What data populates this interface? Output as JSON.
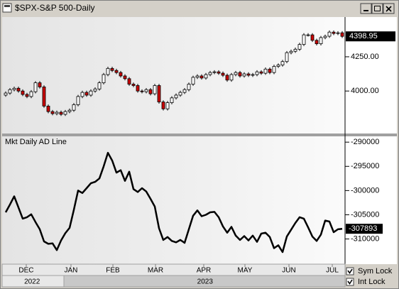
{
  "window_title": "$SPX-S&P 500-Daily",
  "controls": [
    "Sym Lock",
    "Int Lock"
  ],
  "x_axis": {
    "xlim": [
      -0.5,
      79.5
    ],
    "ticks": [
      {
        "value": 4.83,
        "label": "DEC"
      },
      {
        "value": 15.33,
        "label": "JAN"
      },
      {
        "value": 25.17,
        "label": "FEB"
      },
      {
        "value": 35.17,
        "label": "MAR"
      },
      {
        "value": 46.5,
        "label": "APR"
      },
      {
        "value": 56.17,
        "label": "MAY"
      },
      {
        "value": 66.5,
        "label": "JUN"
      },
      {
        "value": 76.67,
        "label": "JUL"
      }
    ],
    "years": [
      {
        "value": 6.2,
        "label": "2022"
      },
      {
        "value": 46.8,
        "label": "2023"
      }
    ]
  },
  "chart_data": [
    {
      "type": "candlestick",
      "up_color": "#ffffff",
      "down_color": "#cc0000",
      "edge_color": "#000000",
      "ylim": [
        3690,
        4540
      ],
      "yticks": [
        {
          "value": 4000,
          "label": "4000.00"
        },
        {
          "value": 4250,
          "label": "4250.00"
        }
      ],
      "open": [
        3970,
        3985,
        4010,
        4020,
        4000,
        3975,
        3960,
        3995,
        4060,
        4030,
        3890,
        3850,
        3835,
        3845,
        3830,
        3850,
        3860,
        3900,
        3960,
        3990,
        3970,
        4000,
        4015,
        4060,
        4120,
        4165,
        4150,
        4135,
        4110,
        4090,
        4050,
        4040,
        4000,
        3995,
        4010,
        3980,
        4040,
        3920,
        3870,
        3915,
        3950,
        3970,
        3990,
        4010,
        4050,
        4100,
        4110,
        4095,
        4120,
        4135,
        4140,
        4130,
        4115,
        4080,
        4120,
        4135,
        4110,
        4125,
        4115,
        4120,
        4140,
        4130,
        4160,
        4135,
        4180,
        4190,
        4215,
        4280,
        4290,
        4305,
        4340,
        4410,
        4410,
        4370,
        4345,
        4390,
        4400,
        4430,
        4420,
        4425
      ],
      "high": [
        3997,
        4022,
        4032,
        4032,
        4012,
        3987,
        4007,
        4072,
        4072,
        4042,
        3902,
        3862,
        3857,
        3857,
        3862,
        3872,
        3912,
        3972,
        4002,
        4002,
        4012,
        4027,
        4072,
        4132,
        4177,
        4177,
        4162,
        4147,
        4122,
        4102,
        4062,
        4052,
        4012,
        4022,
        4022,
        4052,
        4052,
        3932,
        3927,
        3962,
        3982,
        4002,
        4022,
        4062,
        4112,
        4122,
        4122,
        4132,
        4147,
        4152,
        4152,
        4142,
        4127,
        4132,
        4147,
        4147,
        4137,
        4137,
        4132,
        4152,
        4152,
        4172,
        4172,
        4192,
        4202,
        4227,
        4292,
        4302,
        4317,
        4352,
        4422,
        4422,
        4422,
        4382,
        4402,
        4412,
        4442,
        4442,
        4437,
        4437
      ],
      "low": [
        3958,
        3973,
        3998,
        3988,
        3963,
        3948,
        3948,
        3983,
        4018,
        3878,
        3838,
        3823,
        3823,
        3818,
        3818,
        3838,
        3848,
        3888,
        3948,
        3958,
        3958,
        3988,
        4003,
        4048,
        4108,
        4138,
        4123,
        4098,
        4078,
        4038,
        4028,
        3988,
        3983,
        3983,
        3968,
        3968,
        3908,
        3858,
        3858,
        3903,
        3938,
        3958,
        3978,
        3998,
        4038,
        4088,
        4083,
        4083,
        4108,
        4123,
        4118,
        4103,
        4068,
        4068,
        4108,
        4098,
        4098,
        4103,
        4103,
        4108,
        4118,
        4118,
        4123,
        4123,
        4168,
        4178,
        4203,
        4268,
        4278,
        4293,
        4328,
        4398,
        4358,
        4333,
        4333,
        4378,
        4388,
        4408,
        4408,
        4387
      ],
      "close": [
        3985,
        4010,
        4020,
        4000,
        3975,
        3960,
        3995,
        4060,
        4030,
        3890,
        3850,
        3835,
        3845,
        3830,
        3850,
        3860,
        3900,
        3960,
        3990,
        3970,
        4000,
        4015,
        4060,
        4120,
        4165,
        4150,
        4135,
        4110,
        4090,
        4050,
        4040,
        4000,
        3995,
        4010,
        3980,
        4040,
        3920,
        3870,
        3915,
        3950,
        3970,
        3990,
        4010,
        4050,
        4100,
        4110,
        4095,
        4120,
        4135,
        4140,
        4130,
        4115,
        4080,
        4120,
        4135,
        4110,
        4125,
        4115,
        4120,
        4140,
        4130,
        4160,
        4135,
        4180,
        4190,
        4215,
        4280,
        4290,
        4305,
        4340,
        4410,
        4410,
        4370,
        4345,
        4390,
        4400,
        4430,
        4420,
        4425,
        4398.95
      ]
    },
    {
      "type": "line",
      "title": "Mkt Daily AD Line",
      "color": "#000000",
      "ylim": [
        -315200,
        -288800
      ],
      "yticks": [
        -290000,
        -295000,
        -300000,
        -305000,
        -310000
      ],
      "values": [
        -304500,
        -302900,
        -301200,
        -303500,
        -305800,
        -305500,
        -304900,
        -306500,
        -308000,
        -310500,
        -311000,
        -310900,
        -312300,
        -310300,
        -308800,
        -307700,
        -304000,
        -300000,
        -300500,
        -299500,
        -298500,
        -298200,
        -297500,
        -295000,
        -292200,
        -293800,
        -296300,
        -295800,
        -298000,
        -296100,
        -299700,
        -300300,
        -299500,
        -300200,
        -301700,
        -303300,
        -307800,
        -310200,
        -309600,
        -310400,
        -310700,
        -310200,
        -310800,
        -308000,
        -305200,
        -304100,
        -305300,
        -305000,
        -304500,
        -304400,
        -305500,
        -307400,
        -308700,
        -307500,
        -309300,
        -310200,
        -309400,
        -310300,
        -309300,
        -310600,
        -308900,
        -308700,
        -309600,
        -311900,
        -311300,
        -312700,
        -309500,
        -308100,
        -306700,
        -305500,
        -305800,
        -307600,
        -309500,
        -310400,
        -309100,
        -306200,
        -306400,
        -308600,
        -308000,
        -307893
      ]
    }
  ]
}
